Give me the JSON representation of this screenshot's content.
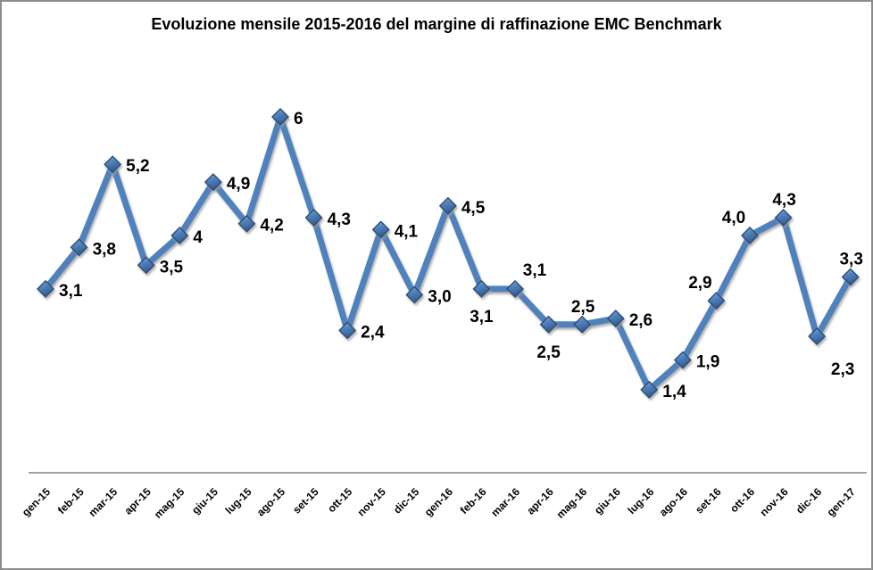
{
  "window": {
    "background": "#ffffff",
    "frame_border_color": "#8c8c8c"
  },
  "chart_data": {
    "type": "line",
    "title": "Evoluzione mensile 2015-2016 del margine di raffinazione EMC Benchmark",
    "categories": [
      "gen-15",
      "feb-15",
      "mar-15",
      "apr-15",
      "mag-15",
      "giu-15",
      "lug-15",
      "ago-15",
      "set-15",
      "ott-15",
      "nov-15",
      "dic-15",
      "gen-16",
      "feb-16",
      "mar-16",
      "apr-16",
      "mag-16",
      "giu-16",
      "lug-16",
      "ago-16",
      "set-16",
      "ott-16",
      "nov-16",
      "dic-16",
      "gen-17"
    ],
    "values": [
      3.1,
      3.8,
      5.2,
      3.5,
      4,
      4.9,
      4.2,
      6,
      4.3,
      2.4,
      4.1,
      3.0,
      4.5,
      3.1,
      3.1,
      2.5,
      2.5,
      2.6,
      1.4,
      1.9,
      2.9,
      4.0,
      4.3,
      2.3,
      3.3
    ],
    "data_labels": [
      "3,1",
      "3,8",
      "5,2",
      "3,5",
      "4",
      "4,9",
      "4,2",
      "6",
      "4,3",
      "2,4",
      "4,1",
      "3,0",
      "4,5",
      "3,1",
      "3,1",
      "2,5",
      "2,5",
      "2,6",
      "1,4",
      "1,9",
      "2,9",
      "4,0",
      "4,3",
      "2,3",
      "3,3"
    ],
    "data_label_positions": [
      "right",
      "right",
      "right",
      "right",
      "right",
      "right",
      "right",
      "right",
      "right",
      "right",
      "right",
      "right",
      "right",
      "below",
      "above-right",
      "below",
      "above",
      "right",
      "right",
      "right",
      "above-left",
      "above-left",
      "above",
      "below-right",
      "above"
    ],
    "xlabel": "",
    "ylabel": "",
    "ylim": [
      0,
      7
    ],
    "grid": false,
    "legend": "none",
    "y_axis_visible": false,
    "marker": "diamond",
    "colors": {
      "line": "#4F81BD",
      "marker_light": "#8AAFDC",
      "marker_mid": "#4F81BD",
      "marker_dark": "#345C90",
      "marker_border": "#2C4D75",
      "axis_line": "#868686",
      "label_text": "#000000",
      "title_text": "#000000"
    }
  }
}
